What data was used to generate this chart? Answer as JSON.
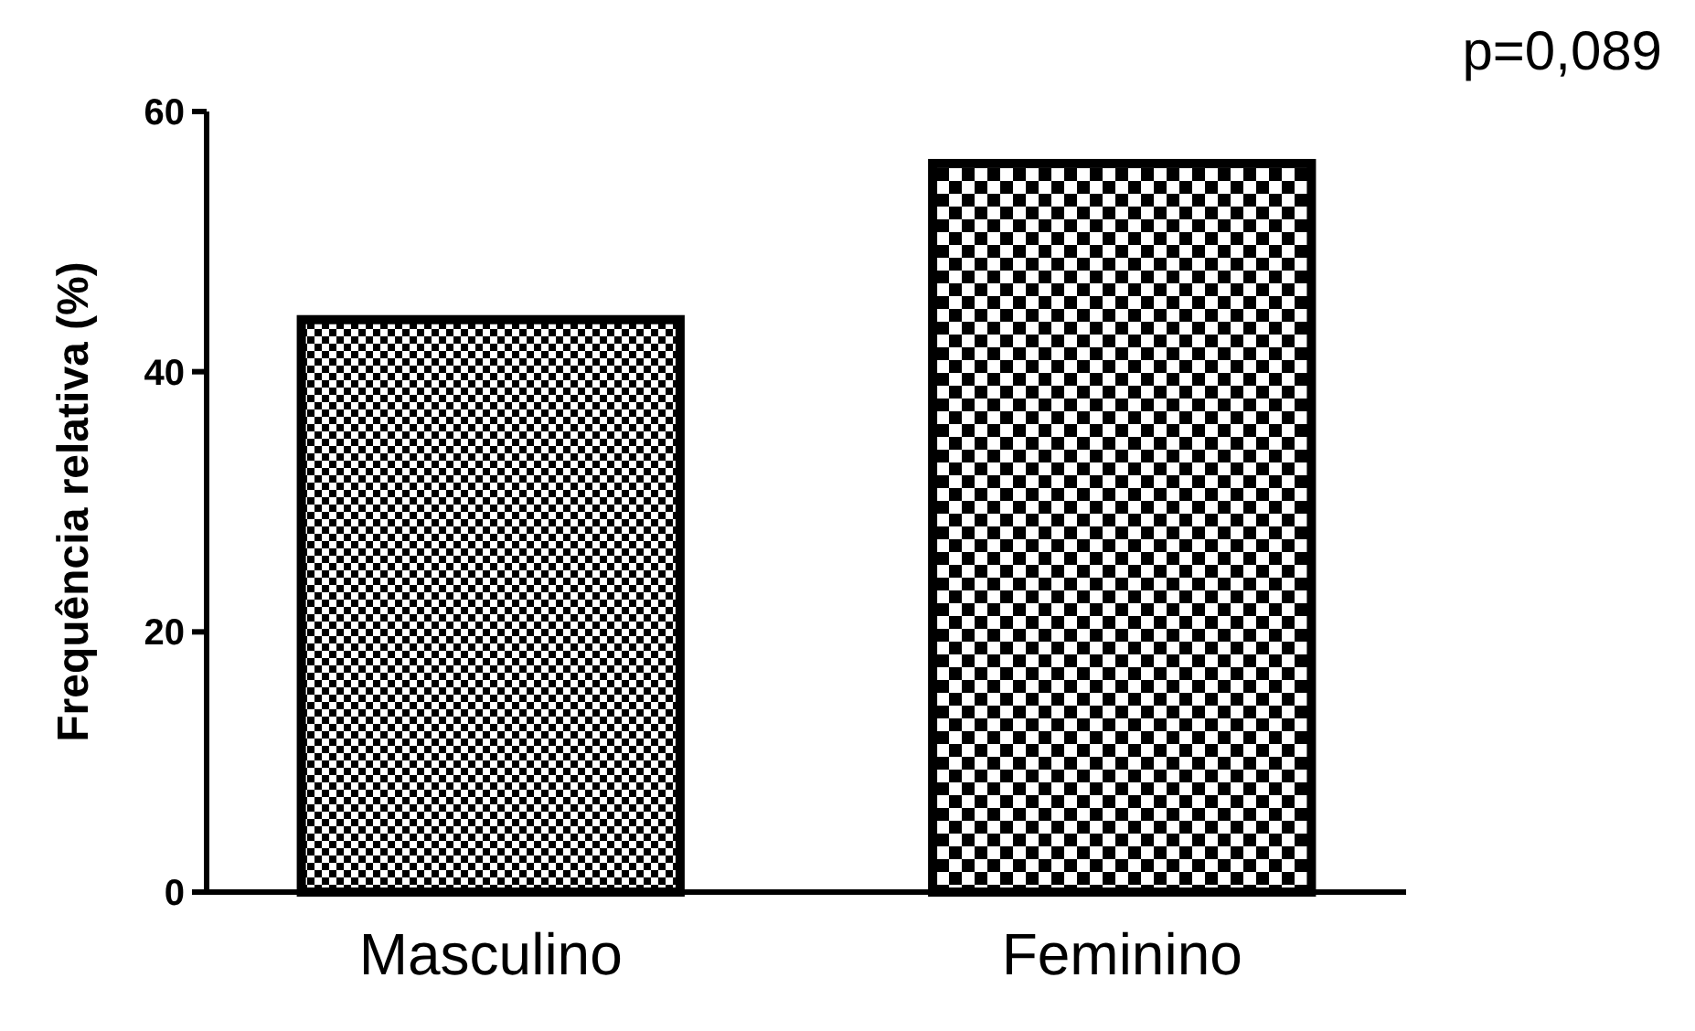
{
  "chart_data": {
    "type": "bar",
    "ylabel": "Frequência relativa (%)",
    "categories": [
      "Masculino",
      "Feminino"
    ],
    "values": [
      44,
      56
    ],
    "colors": [
      "#000000",
      "#000000"
    ],
    "ylim": [
      0,
      60
    ],
    "yticks": [
      0,
      20,
      40,
      60
    ],
    "annotations": [
      "p=0,089"
    ],
    "grid": false
  }
}
